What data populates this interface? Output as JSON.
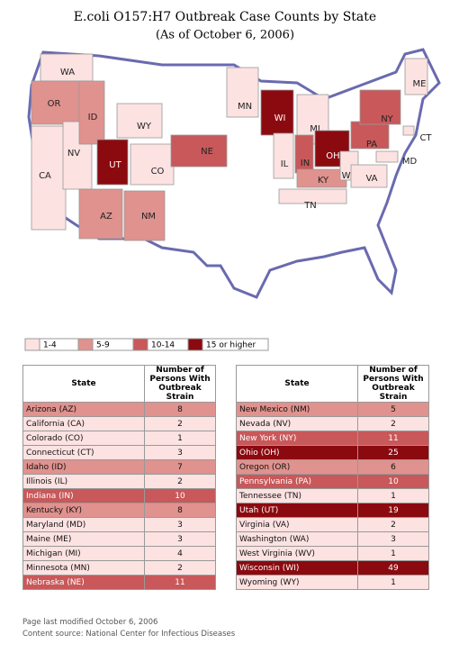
{
  "title": "E.coli O157:H7 Outbreak Case Counts by State",
  "subtitle": "(As of October 6, 2006)",
  "map_labels": [
    {
      "label": "WA",
      "color": "#fde2e2"
    },
    {
      "label": "OR",
      "color": "#e0928e"
    },
    {
      "label": "CA",
      "color": "#fde2e2"
    },
    {
      "label": "NV",
      "color": "#fde2e2"
    },
    {
      "label": "ID",
      "color": "#e0928e"
    },
    {
      "label": "UT",
      "color": "#8b0a10"
    },
    {
      "label": "WY",
      "color": "#fde2e2"
    },
    {
      "label": "CO",
      "color": "#fde2e2"
    },
    {
      "label": "AZ",
      "color": "#e0928e"
    },
    {
      "label": "NM",
      "color": "#e0928e"
    },
    {
      "label": "NE",
      "color": "#c8585a"
    },
    {
      "label": "MN",
      "color": "#fde2e2"
    },
    {
      "label": "WI",
      "color": "#8b0a10"
    },
    {
      "label": "MI",
      "color": "#fde2e2"
    },
    {
      "label": "IL",
      "color": "#fde2e2"
    },
    {
      "label": "IN",
      "color": "#c8585a"
    },
    {
      "label": "OH",
      "color": "#8b0a10"
    },
    {
      "label": "KY",
      "color": "#e0928e"
    },
    {
      "label": "TN",
      "color": "#fde2e2"
    },
    {
      "label": "WV",
      "color": "#fde2e2"
    },
    {
      "label": "VA",
      "color": "#fde2e2"
    },
    {
      "label": "PA",
      "color": "#c8585a"
    },
    {
      "label": "NY",
      "color": "#c8585a"
    },
    {
      "label": "ME",
      "color": "#fde2e2"
    },
    {
      "label": "CT",
      "color": "#fde2e2"
    },
    {
      "label": "MD",
      "color": "#fde2e2"
    }
  ],
  "legend": [
    {
      "label": "1-4",
      "color": "#fde2e2"
    },
    {
      "label": "5-9",
      "color": "#e0928e"
    },
    {
      "label": "10-14",
      "color": "#c8585a"
    },
    {
      "label": "15 or higher",
      "color": "#8b0a10"
    }
  ],
  "tables": [
    {
      "header": [
        "State",
        "Number of Persons With Outbreak Strain"
      ],
      "rows": [
        {
          "state": "Arizona (AZ)",
          "count": "8",
          "color": "#e0928e"
        },
        {
          "state": "California (CA)",
          "count": "2",
          "color": "#fde2e2"
        },
        {
          "state": "Colorado (CO)",
          "count": "1",
          "color": "#fde2e2"
        },
        {
          "state": "Connecticut (CT)",
          "count": "3",
          "color": "#fde2e2"
        },
        {
          "state": "Idaho (ID)",
          "count": "7",
          "color": "#e0928e"
        },
        {
          "state": "Illinois (IL)",
          "count": "2",
          "color": "#fde2e2"
        },
        {
          "state": "Indiana (IN)",
          "count": "10",
          "color": "#c8585a"
        },
        {
          "state": "Kentucky (KY)",
          "count": "8",
          "color": "#e0928e"
        },
        {
          "state": "Maryland (MD)",
          "count": "3",
          "color": "#fde2e2"
        },
        {
          "state": "Maine (ME)",
          "count": "3",
          "color": "#fde2e2"
        },
        {
          "state": "Michigan (MI)",
          "count": "4",
          "color": "#fde2e2"
        },
        {
          "state": "Minnesota (MN)",
          "count": "2",
          "color": "#fde2e2"
        },
        {
          "state": "Nebraska (NE)",
          "count": "11",
          "color": "#c8585a"
        }
      ]
    },
    {
      "header": [
        "State",
        "Number of Persons With Outbreak Strain"
      ],
      "rows": [
        {
          "state": "New Mexico (NM)",
          "count": "5",
          "color": "#e0928e"
        },
        {
          "state": "Nevada (NV)",
          "count": "2",
          "color": "#fde2e2"
        },
        {
          "state": "New York (NY)",
          "count": "11",
          "color": "#c8585a"
        },
        {
          "state": "Ohio (OH)",
          "count": "25",
          "color": "#8b0a10"
        },
        {
          "state": "Oregon (OR)",
          "count": "6",
          "color": "#e0928e"
        },
        {
          "state": "Pennsylvania (PA)",
          "count": "10",
          "color": "#c8585a"
        },
        {
          "state": "Tennessee (TN)",
          "count": "1",
          "color": "#fde2e2"
        },
        {
          "state": "Utah (UT)",
          "count": "19",
          "color": "#8b0a10"
        },
        {
          "state": "Virginia (VA)",
          "count": "2",
          "color": "#fde2e2"
        },
        {
          "state": "Washington (WA)",
          "count": "3",
          "color": "#fde2e2"
        },
        {
          "state": "West Virginia (WV)",
          "count": "1",
          "color": "#fde2e2"
        },
        {
          "state": "Wisconsin (WI)",
          "count": "49",
          "color": "#8b0a10"
        },
        {
          "state": "Wyoming (WY)",
          "count": "1",
          "color": "#fde2e2"
        }
      ]
    }
  ],
  "footer": [
    "Page last modified October 6, 2006",
    "Content source: National Center for Infectious Diseases"
  ]
}
